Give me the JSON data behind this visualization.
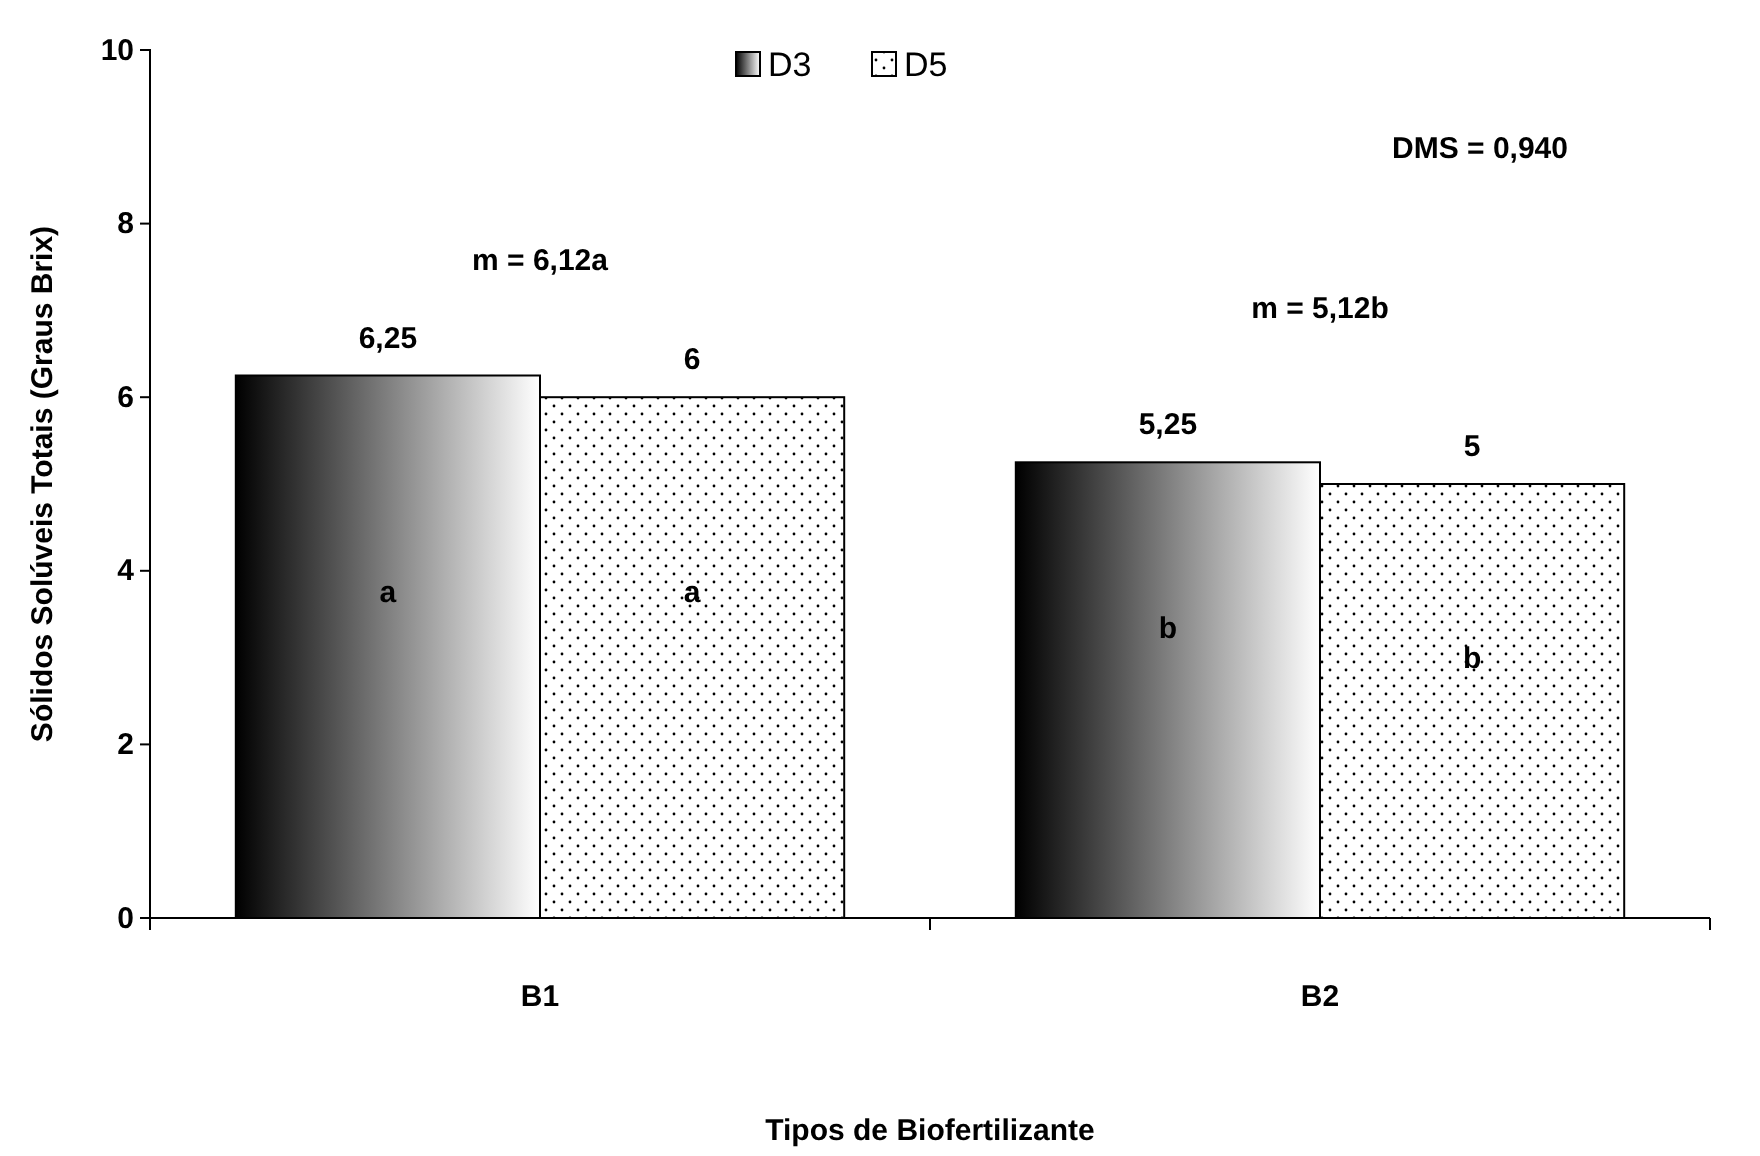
{
  "chart_data": {
    "type": "bar",
    "xlabel": "Tipos de Biofertilizante",
    "ylabel": "Sólidos Solúveis Totais (Graus Brix)",
    "categories": [
      "B1",
      "B2"
    ],
    "series": [
      {
        "name": "D3",
        "color": "#000000",
        "values": [
          6.25,
          5.25
        ],
        "value_labels": [
          "6,25",
          "5,25"
        ]
      },
      {
        "name": "D5",
        "color": "#000000",
        "values": [
          6,
          5
        ],
        "value_labels": [
          "6",
          "5"
        ]
      }
    ],
    "ylim": [
      0,
      10
    ],
    "yticks": [
      0,
      2,
      4,
      6,
      8,
      10
    ],
    "grid": false,
    "legend": "top",
    "annotations": [
      "DMS = 0,940",
      "m = 6,12a",
      "m = 5,12b",
      "a",
      "a",
      "b",
      "b"
    ]
  }
}
